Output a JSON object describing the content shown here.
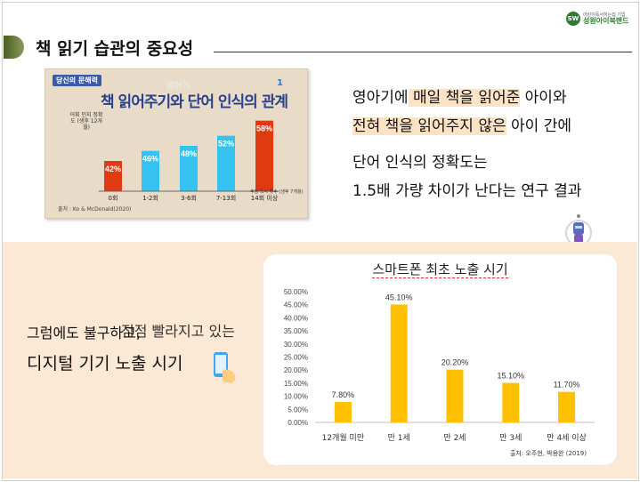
{
  "logo": {
    "sub": "어린이독서하는집 기업",
    "main": "성원아이북랜드",
    "badge": "SW"
  },
  "title": "책 읽기 습관의 중요성",
  "thumbnail": {
    "tag": "당신의 문해력",
    "subtitle": "영아기",
    "title": "책 읽어주기와 단어 인식의 관계",
    "number": "1",
    "ylabel": "어휘 인지 정확도 (생후 12개월)",
    "xnote": "주당 독서 횟수 (생후 7개월)",
    "source": "출처 : Ko & McDonald(2020)",
    "chart_data": {
      "type": "bar",
      "categories": [
        "0회",
        "1-2회",
        "3-6회",
        "7-13회",
        "14회 이상"
      ],
      "values": [
        42,
        46,
        48,
        52,
        58
      ],
      "value_labels": [
        "42%",
        "46%",
        "48%",
        "52%",
        "58%"
      ],
      "colors": [
        "#e03a10",
        "#35c2f0",
        "#35c2f0",
        "#35c2f0",
        "#e03a10"
      ]
    }
  },
  "right_text": {
    "line1_pre": "영아기에",
    "line1_hl": " 매일 책을 읽어준",
    "line1_post": " 아이와",
    "line2_hl": "전혀 책을 읽어주지 않은",
    "line2_post": " 아이 간에",
    "line3": "단어 인식의 정확도는",
    "line4": " 1.5배 가량 차이가 난다는 연구 결과"
  },
  "left_text": {
    "line1": "그럼에도  불구하고,",
    "line1b": "점점 빨라지고 있는",
    "line2": "디지털 기기 노출 시기"
  },
  "chart": {
    "source": "출처: 오주현, 박용완 (2019)",
    "chart_data": {
      "type": "bar",
      "title": "스마트폰 최초 노출 시기",
      "categories": [
        "12개월 미만",
        "만 1세",
        "만 2세",
        "만 3세",
        "만 4세 이상"
      ],
      "values": [
        7.8,
        45.1,
        20.2,
        15.1,
        11.7
      ],
      "value_labels": [
        "7.80%",
        "45.10%",
        "20.20%",
        "15.10%",
        "11.70%"
      ],
      "y_ticks": [
        "0.00%",
        "5.00%",
        "10.00%",
        "15.00%",
        "20.00%",
        "25.00%",
        "30.00%",
        "35.00%",
        "40.00%",
        "45.00%",
        "50.00%"
      ],
      "ylim": [
        0,
        50
      ],
      "grid": false,
      "bar_color": "#ffc000"
    }
  }
}
